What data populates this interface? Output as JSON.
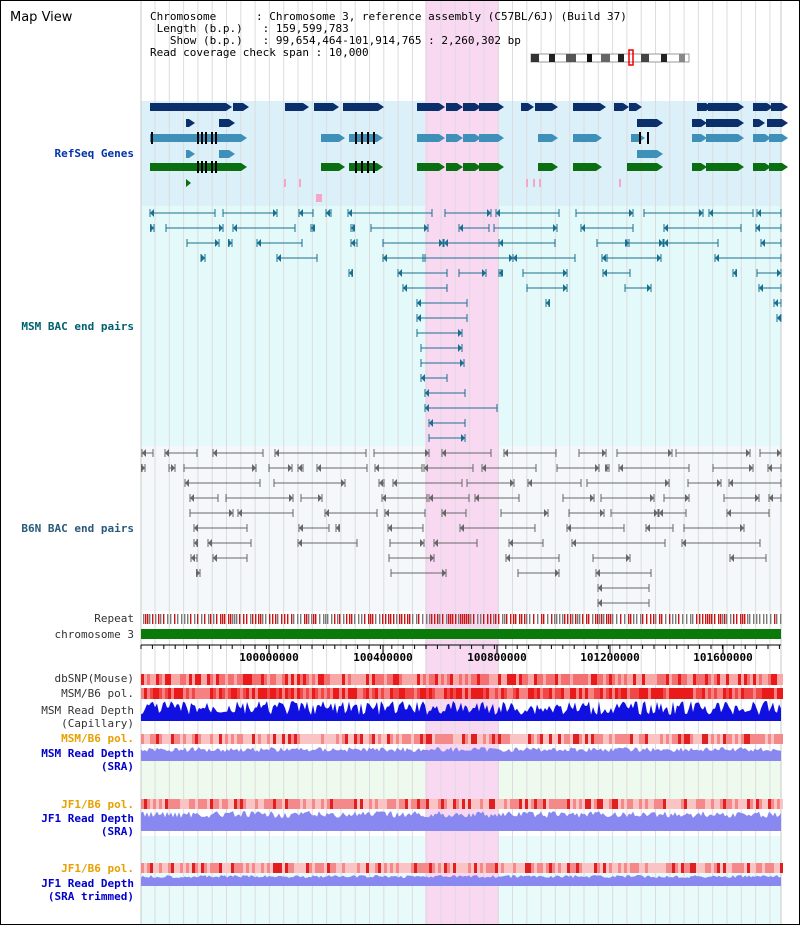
{
  "title": "Map View",
  "info": {
    "chromosome_key": "Chromosome",
    "chromosome_val": "Chromosome 3, reference assembly (C57BL/6J) (Build 37)",
    "length_key": "Length (b.p.)",
    "length_val": "159,599,783",
    "show_key": "Show (b.p.)",
    "show_val": "99,654,464-101,914,765 : 2,260,302 bp",
    "span_key": "Read coverage check span",
    "span_val": "10,000"
  },
  "tracks": {
    "refseq": "RefSeq Genes",
    "msm_bac": "MSM BAC end pairs",
    "b6n_bac": "B6N BAC end pairs",
    "repeat": "Repeat",
    "chromosome": "chromosome 3",
    "dbsnp": "dbSNP(Mouse)",
    "msm_pol1": "MSM/B6 pol.",
    "msm_depth_cap_1": "MSM Read Depth",
    "msm_depth_cap_2": "(Capillary)",
    "msm_pol2": "MSM/B6 pol.",
    "msm_depth_sra_1": "MSM Read Depth",
    "msm_depth_sra_2": "(SRA)",
    "jf1_pol1": "JF1/B6 pol.",
    "jf1_depth_sra_1": "JF1 Read Depth",
    "jf1_depth_sra_2": "(SRA)",
    "jf1_pol2": "JF1/B6 pol.",
    "jf1_depth_trim_1": "JF1 Read Depth",
    "jf1_depth_trim_2": "(SRA trimmed)"
  },
  "ticks": [
    "100000000",
    "100400000",
    "100800000",
    "101200000",
    "101600000"
  ],
  "colors": {
    "refseq_bg": "#dcf0fa",
    "bac_bg": "#e4fafa",
    "b6n_bg": "#f4f8fa",
    "highlight": "#f9d8f2",
    "gene_dark": "#0b2f6b",
    "gene_mid": "#3f90b8",
    "gene_green": "#0a6f10",
    "bac_msm": "#1a6f90",
    "bac_b6n": "#666666",
    "chrom": "#0a7a0a",
    "depth": "#1010e0",
    "depth_light": "#8888f0"
  }
}
